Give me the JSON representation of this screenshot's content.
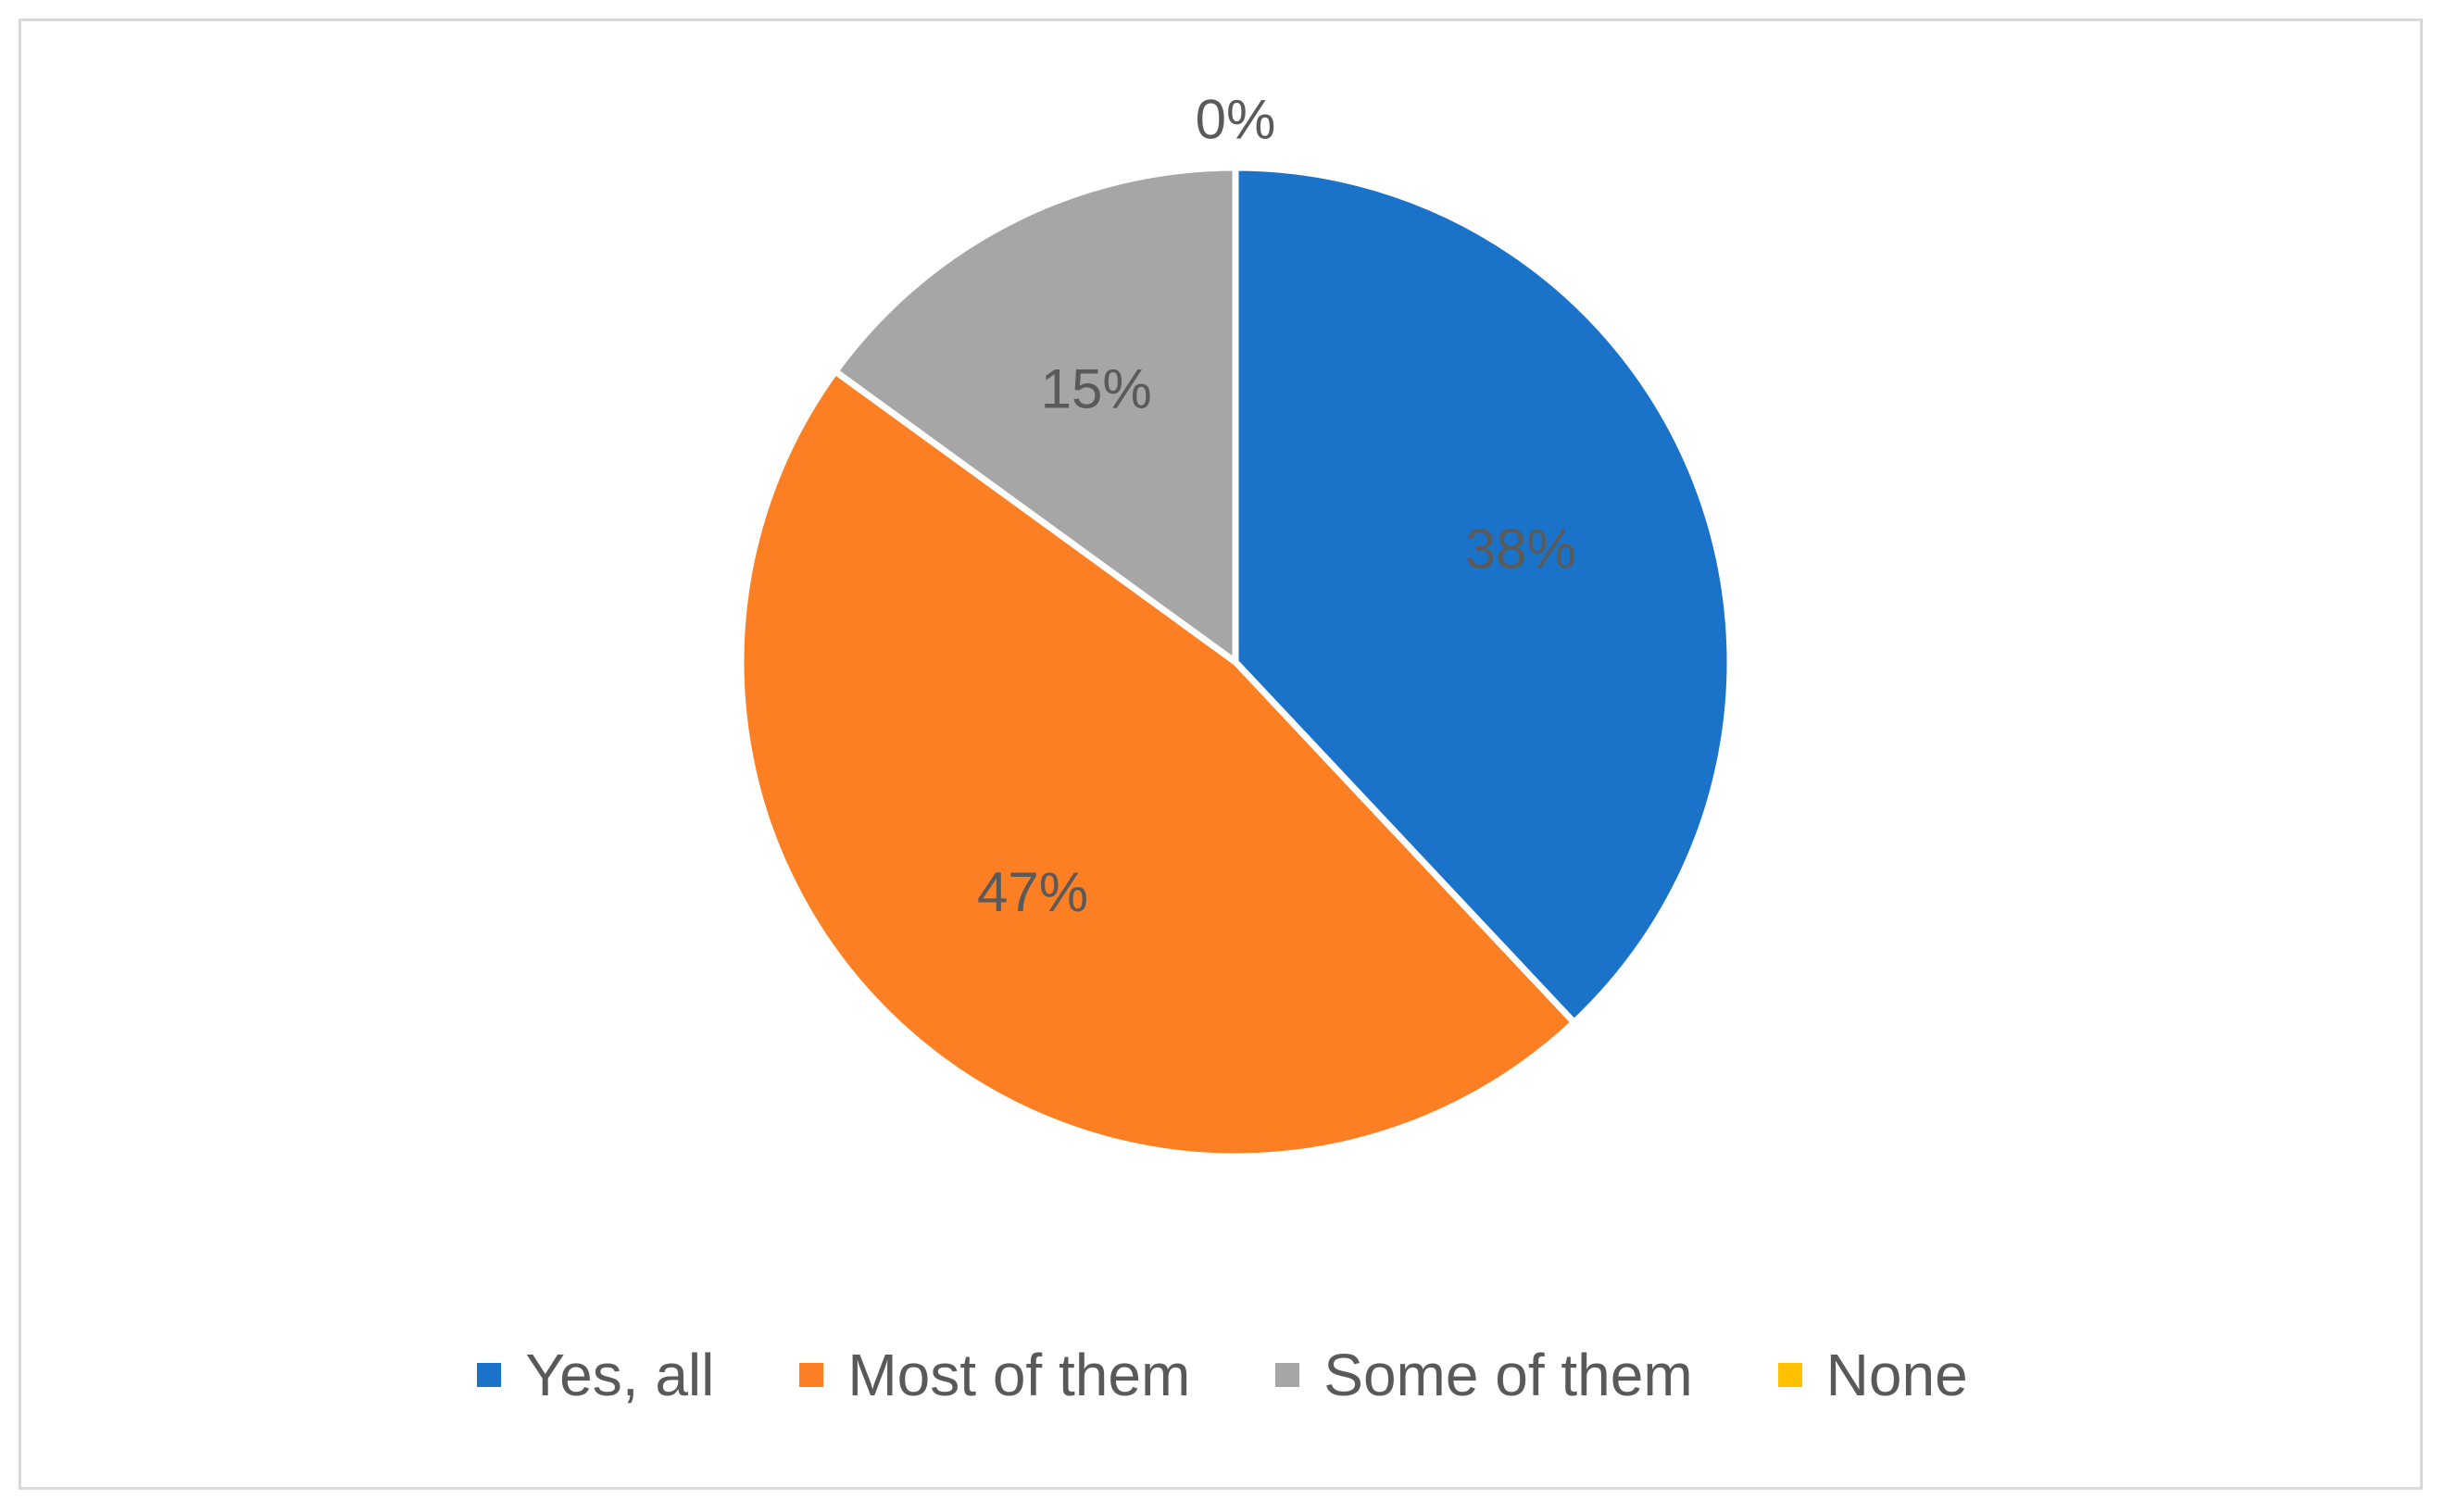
{
  "chart_data": {
    "type": "pie",
    "categories": [
      "Yes, all",
      "Most of them",
      "Some of them",
      "None"
    ],
    "values": [
      38,
      47,
      15,
      0
    ],
    "data_labels": [
      "38%",
      "47%",
      "15%",
      "0%"
    ],
    "colors": [
      "#1a73c8",
      "#fd7f23",
      "#a6a6a6",
      "#ffc000"
    ],
    "legend_position": "bottom",
    "start_angle": "12 o'clock, clockwise",
    "label_color": "#5a5a5a"
  }
}
